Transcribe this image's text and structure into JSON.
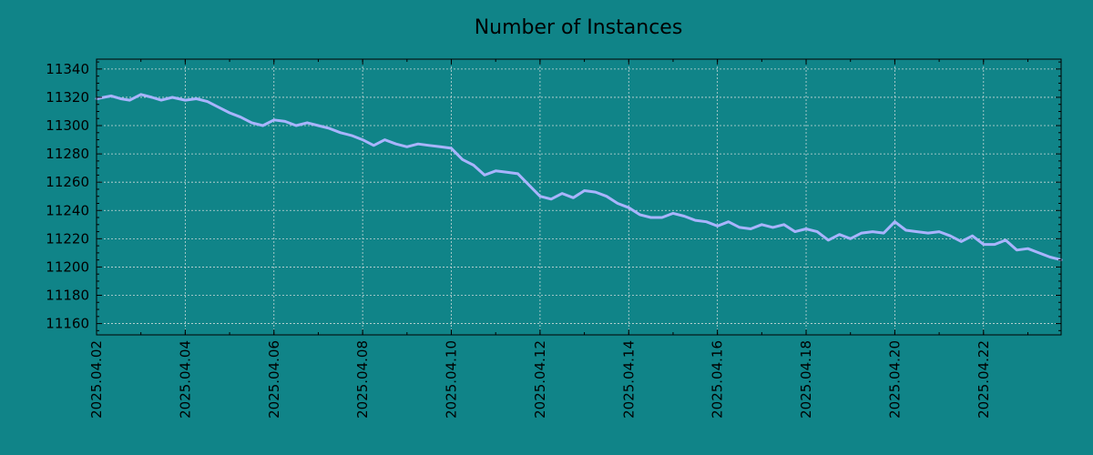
{
  "chart_data": {
    "type": "line",
    "title": "Number of Instances",
    "xlabel": "",
    "ylabel": "",
    "x_range": [
      "2025-04-02",
      "2025-04-23T18:00"
    ],
    "ylim": [
      11152,
      11347
    ],
    "grid": true,
    "legend": "none",
    "y_ticks": [
      11160,
      11180,
      11200,
      11220,
      11240,
      11260,
      11280,
      11300,
      11320,
      11340
    ],
    "x_ticks": [
      "2025.04.02",
      "2025.04.04",
      "2025.04.06",
      "2025.04.08",
      "2025.04.10",
      "2025.04.12",
      "2025.04.14",
      "2025.04.16",
      "2025.04.18",
      "2025.04.20",
      "2025.04.22"
    ],
    "colors": {
      "background": "#108488",
      "line": "#a9b4ff"
    },
    "series": [
      {
        "name": "",
        "points": [
          [
            "2025-04-02T00:00",
            11319
          ],
          [
            "2025-04-02T08:00",
            11321
          ],
          [
            "2025-04-02T13:00",
            11319
          ],
          [
            "2025-04-02T18:00",
            11318
          ],
          [
            "2025-04-03T00:00",
            11322
          ],
          [
            "2025-04-03T06:00",
            11320
          ],
          [
            "2025-04-03T11:00",
            11318
          ],
          [
            "2025-04-03T17:00",
            11320
          ],
          [
            "2025-04-04T00:00",
            11318
          ],
          [
            "2025-04-04T06:00",
            11319
          ],
          [
            "2025-04-04T12:00",
            11317
          ],
          [
            "2025-04-04T18:00",
            11313
          ],
          [
            "2025-04-05T00:00",
            11309
          ],
          [
            "2025-04-05T06:00",
            11306
          ],
          [
            "2025-04-05T12:00",
            11302
          ],
          [
            "2025-04-05T18:00",
            11300
          ],
          [
            "2025-04-06T00:00",
            11304
          ],
          [
            "2025-04-06T06:00",
            11303
          ],
          [
            "2025-04-06T12:00",
            11300
          ],
          [
            "2025-04-06T18:00",
            11302
          ],
          [
            "2025-04-07T00:00",
            11300
          ],
          [
            "2025-04-07T06:00",
            11298
          ],
          [
            "2025-04-07T12:00",
            11295
          ],
          [
            "2025-04-07T18:00",
            11293
          ],
          [
            "2025-04-08T00:00",
            11290
          ],
          [
            "2025-04-08T06:00",
            11286
          ],
          [
            "2025-04-08T12:00",
            11290
          ],
          [
            "2025-04-08T18:00",
            11287
          ],
          [
            "2025-04-09T00:00",
            11285
          ],
          [
            "2025-04-09T06:00",
            11287
          ],
          [
            "2025-04-09T12:00",
            11286
          ],
          [
            "2025-04-09T18:00",
            11285
          ],
          [
            "2025-04-10T00:00",
            11284
          ],
          [
            "2025-04-10T06:00",
            11276
          ],
          [
            "2025-04-10T12:00",
            11272
          ],
          [
            "2025-04-10T18:00",
            11265
          ],
          [
            "2025-04-11T00:00",
            11268
          ],
          [
            "2025-04-11T06:00",
            11267
          ],
          [
            "2025-04-11T12:00",
            11266
          ],
          [
            "2025-04-11T18:00",
            11258
          ],
          [
            "2025-04-12T00:00",
            11250
          ],
          [
            "2025-04-12T06:00",
            11248
          ],
          [
            "2025-04-12T12:00",
            11252
          ],
          [
            "2025-04-12T18:00",
            11249
          ],
          [
            "2025-04-13T00:00",
            11254
          ],
          [
            "2025-04-13T06:00",
            11253
          ],
          [
            "2025-04-13T12:00",
            11250
          ],
          [
            "2025-04-13T18:00",
            11245
          ],
          [
            "2025-04-14T00:00",
            11242
          ],
          [
            "2025-04-14T06:00",
            11237
          ],
          [
            "2025-04-14T12:00",
            11235
          ],
          [
            "2025-04-14T18:00",
            11235
          ],
          [
            "2025-04-15T00:00",
            11238
          ],
          [
            "2025-04-15T06:00",
            11236
          ],
          [
            "2025-04-15T12:00",
            11233
          ],
          [
            "2025-04-15T18:00",
            11232
          ],
          [
            "2025-04-16T00:00",
            11229
          ],
          [
            "2025-04-16T06:00",
            11232
          ],
          [
            "2025-04-16T12:00",
            11228
          ],
          [
            "2025-04-16T18:00",
            11227
          ],
          [
            "2025-04-17T00:00",
            11230
          ],
          [
            "2025-04-17T06:00",
            11228
          ],
          [
            "2025-04-17T12:00",
            11230
          ],
          [
            "2025-04-17T18:00",
            11225
          ],
          [
            "2025-04-18T00:00",
            11227
          ],
          [
            "2025-04-18T06:00",
            11225
          ],
          [
            "2025-04-18T12:00",
            11219
          ],
          [
            "2025-04-18T18:00",
            11223
          ],
          [
            "2025-04-19T00:00",
            11220
          ],
          [
            "2025-04-19T06:00",
            11224
          ],
          [
            "2025-04-19T12:00",
            11225
          ],
          [
            "2025-04-19T18:00",
            11224
          ],
          [
            "2025-04-20T00:00",
            11232
          ],
          [
            "2025-04-20T06:00",
            11226
          ],
          [
            "2025-04-20T12:00",
            11225
          ],
          [
            "2025-04-20T18:00",
            11224
          ],
          [
            "2025-04-21T00:00",
            11225
          ],
          [
            "2025-04-21T06:00",
            11222
          ],
          [
            "2025-04-21T12:00",
            11218
          ],
          [
            "2025-04-21T18:00",
            11222
          ],
          [
            "2025-04-22T00:00",
            11216
          ],
          [
            "2025-04-22T06:00",
            11216
          ],
          [
            "2025-04-22T12:00",
            11219
          ],
          [
            "2025-04-22T18:00",
            11212
          ],
          [
            "2025-04-23T00:00",
            11213
          ],
          [
            "2025-04-23T06:00",
            11210
          ],
          [
            "2025-04-23T12:00",
            11207
          ],
          [
            "2025-04-23T18:00",
            11205
          ]
        ]
      }
    ]
  }
}
